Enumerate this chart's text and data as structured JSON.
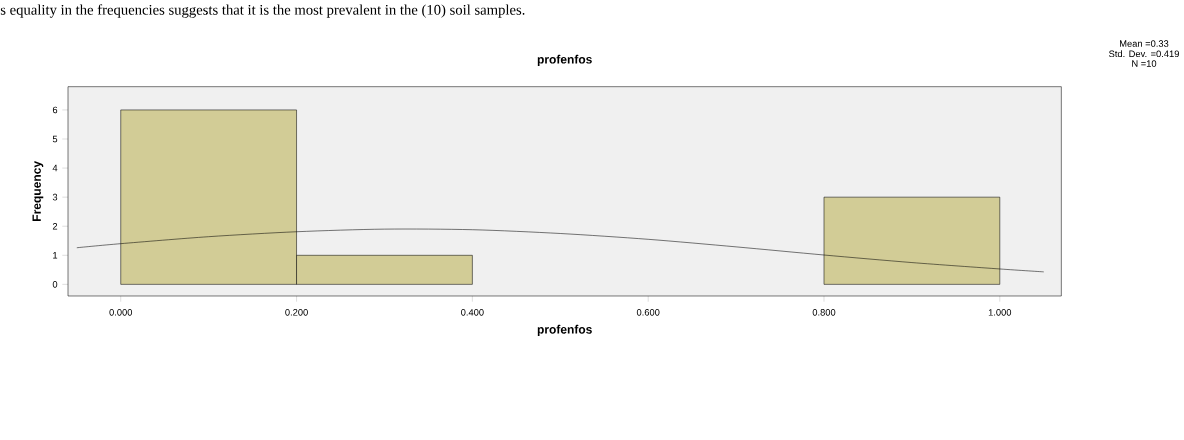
{
  "chart_data": {
    "type": "histogram",
    "title": "profenfos",
    "xlabel": "profenfos",
    "ylabel": "Frequency",
    "annotations": [
      "s equality in the frequencies suggests that it is the most prevalent in the (10) soil samples.",
      "Mean =0.33",
      "Std. Dev. =0.419",
      "N =10"
    ],
    "series": [
      {
        "color": "#d2cc96",
        "bins": [
          0,
          0.2,
          0.4,
          0.6,
          0.8,
          1.0
        ],
        "values": [
          6,
          1,
          0,
          0,
          3
        ]
      },
      {
        "type": "line",
        "color": "#000000",
        "x": [
          -0.05,
          0,
          0.1,
          0.2,
          0.3,
          0.4,
          0.5,
          0.6,
          0.7,
          0.8,
          0.9,
          1.0,
          1.05
        ],
        "values": [
          1.26,
          1.4,
          1.64,
          1.81,
          1.9,
          1.88,
          1.75,
          1.55,
          1.29,
          1.01,
          0.75,
          0.53,
          0.43
        ]
      }
    ],
    "xlim": [
      -0.06,
      1.07
    ],
    "ylim": [
      -0.4,
      6.8
    ],
    "xticks": [
      {
        "value": 0,
        "label": "0.000"
      },
      {
        "value": 0.2,
        "label": "0.200"
      },
      {
        "value": 0.4,
        "label": "0.400"
      },
      {
        "value": 0.6,
        "label": "0.600"
      },
      {
        "value": 0.8,
        "label": "0.800"
      },
      {
        "value": 1.0,
        "label": "1.000"
      }
    ],
    "yticks": [
      0,
      1,
      2,
      3,
      4,
      5,
      6
    ],
    "grid": false,
    "marker": "none",
    "line_style": "solid"
  }
}
